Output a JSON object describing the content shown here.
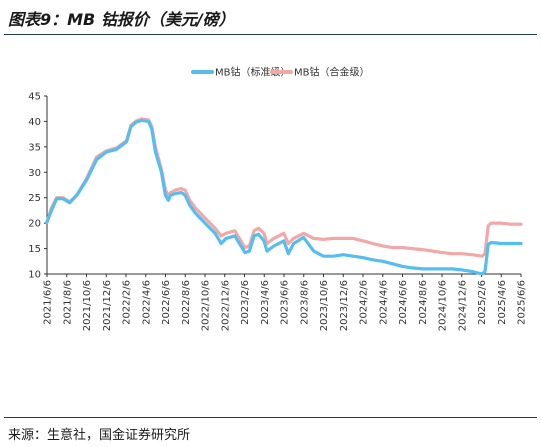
{
  "figure": {
    "title": "图表9：MB 钴报价（美元/磅）",
    "source": "来源：生意社，国金证券研究所"
  },
  "chart_data": {
    "type": "line",
    "title": "",
    "xlabel": "",
    "ylabel": "",
    "ylim": [
      10,
      45
    ],
    "yticks": [
      10,
      15,
      20,
      25,
      30,
      35,
      40,
      45
    ],
    "xlim": [
      "2021-06-06",
      "2025-06-06"
    ],
    "xtick_labels": [
      "2021/6/6",
      "2021/8/6",
      "2021/10/6",
      "2021/12/6",
      "2022/2/6",
      "2022/4/6",
      "2022/6/6",
      "2022/8/6",
      "2022/10/6",
      "2022/12/6",
      "2023/2/6",
      "2023/4/6",
      "2023/6/6",
      "2023/8/6",
      "2023/10/6",
      "2023/12/6",
      "2024/2/6",
      "2024/4/6",
      "2024/6/6",
      "2024/8/6",
      "2024/10/6",
      "2024/12/6",
      "2025/2/6",
      "2025/4/6",
      "2025/6/6"
    ],
    "legend_position": "top",
    "grid": false,
    "series": [
      {
        "name": "MB钴（标准级）",
        "color": "#55bdf0",
        "points": [
          [
            "2021-06-06",
            20.2
          ],
          [
            "2021-06-20",
            22.5
          ],
          [
            "2021-07-06",
            24.8
          ],
          [
            "2021-07-25",
            24.8
          ],
          [
            "2021-08-15",
            24.0
          ],
          [
            "2021-09-06",
            25.5
          ],
          [
            "2021-10-06",
            28.5
          ],
          [
            "2021-11-06",
            32.5
          ],
          [
            "2021-12-06",
            34.0
          ],
          [
            "2022-01-06",
            34.5
          ],
          [
            "2022-02-06",
            36.0
          ],
          [
            "2022-02-20",
            39.0
          ],
          [
            "2022-03-06",
            39.8
          ],
          [
            "2022-03-25",
            40.2
          ],
          [
            "2022-04-15",
            40.0
          ],
          [
            "2022-04-25",
            38.5
          ],
          [
            "2022-05-06",
            34.0
          ],
          [
            "2022-05-25",
            30.0
          ],
          [
            "2022-06-06",
            25.5
          ],
          [
            "2022-06-15",
            24.5
          ],
          [
            "2022-06-22",
            25.5
          ],
          [
            "2022-07-06",
            25.8
          ],
          [
            "2022-07-25",
            26.0
          ],
          [
            "2022-08-06",
            25.5
          ],
          [
            "2022-08-20",
            23.5
          ],
          [
            "2022-09-06",
            22.0
          ],
          [
            "2022-10-06",
            20.0
          ],
          [
            "2022-11-06",
            18.0
          ],
          [
            "2022-11-25",
            16.0
          ],
          [
            "2022-12-10",
            17.0
          ],
          [
            "2023-01-06",
            17.5
          ],
          [
            "2023-01-25",
            15.5
          ],
          [
            "2023-02-06",
            14.2
          ],
          [
            "2023-02-20",
            14.5
          ],
          [
            "2023-03-06",
            17.5
          ],
          [
            "2023-03-20",
            17.8
          ],
          [
            "2023-04-06",
            16.5
          ],
          [
            "2023-04-15",
            14.5
          ],
          [
            "2023-05-06",
            15.5
          ],
          [
            "2023-06-06",
            16.5
          ],
          [
            "2023-06-20",
            14.0
          ],
          [
            "2023-07-06",
            16.0
          ],
          [
            "2023-08-06",
            17.2
          ],
          [
            "2023-09-06",
            14.5
          ],
          [
            "2023-10-06",
            13.5
          ],
          [
            "2023-11-06",
            13.5
          ],
          [
            "2023-12-06",
            13.8
          ],
          [
            "2024-01-06",
            13.5
          ],
          [
            "2024-02-06",
            13.2
          ],
          [
            "2024-03-06",
            12.8
          ],
          [
            "2024-04-06",
            12.5
          ],
          [
            "2024-05-06",
            12.0
          ],
          [
            "2024-06-06",
            11.5
          ],
          [
            "2024-07-06",
            11.2
          ],
          [
            "2024-08-06",
            11.0
          ],
          [
            "2024-09-06",
            11.0
          ],
          [
            "2024-10-06",
            11.0
          ],
          [
            "2024-11-06",
            11.0
          ],
          [
            "2024-12-06",
            10.8
          ],
          [
            "2025-01-06",
            10.5
          ],
          [
            "2025-02-06",
            10.0
          ],
          [
            "2025-02-15",
            10.5
          ],
          [
            "2025-02-25",
            15.8
          ],
          [
            "2025-03-06",
            16.2
          ],
          [
            "2025-04-06",
            16.0
          ],
          [
            "2025-05-06",
            16.0
          ],
          [
            "2025-06-06",
            16.0
          ]
        ]
      },
      {
        "name": "MB钴（合金级）",
        "color": "#f0a8a8",
        "points": [
          [
            "2021-06-06",
            20.2
          ],
          [
            "2021-06-20",
            23.0
          ],
          [
            "2021-07-06",
            25.0
          ],
          [
            "2021-07-25",
            25.0
          ],
          [
            "2021-08-15",
            24.2
          ],
          [
            "2021-09-06",
            25.5
          ],
          [
            "2021-10-06",
            28.8
          ],
          [
            "2021-11-06",
            33.0
          ],
          [
            "2021-12-06",
            34.2
          ],
          [
            "2022-01-06",
            34.8
          ],
          [
            "2022-02-06",
            36.2
          ],
          [
            "2022-02-20",
            39.2
          ],
          [
            "2022-03-06",
            40.0
          ],
          [
            "2022-03-25",
            40.5
          ],
          [
            "2022-04-15",
            40.3
          ],
          [
            "2022-04-25",
            39.0
          ],
          [
            "2022-05-06",
            35.0
          ],
          [
            "2022-05-25",
            30.5
          ],
          [
            "2022-06-06",
            26.5
          ],
          [
            "2022-06-15",
            25.5
          ],
          [
            "2022-06-22",
            26.0
          ],
          [
            "2022-07-06",
            26.5
          ],
          [
            "2022-07-25",
            26.8
          ],
          [
            "2022-08-06",
            26.5
          ],
          [
            "2022-08-20",
            24.5
          ],
          [
            "2022-09-06",
            23.0
          ],
          [
            "2022-10-06",
            21.0
          ],
          [
            "2022-11-06",
            19.0
          ],
          [
            "2022-11-25",
            17.5
          ],
          [
            "2022-12-10",
            18.0
          ],
          [
            "2023-01-06",
            18.5
          ],
          [
            "2023-01-25",
            16.5
          ],
          [
            "2023-02-06",
            15.2
          ],
          [
            "2023-02-20",
            15.5
          ],
          [
            "2023-03-06",
            18.5
          ],
          [
            "2023-03-20",
            19.0
          ],
          [
            "2023-04-06",
            18.0
          ],
          [
            "2023-04-15",
            16.0
          ],
          [
            "2023-05-06",
            17.0
          ],
          [
            "2023-06-06",
            18.0
          ],
          [
            "2023-06-20",
            16.0
          ],
          [
            "2023-07-06",
            17.0
          ],
          [
            "2023-08-06",
            18.0
          ],
          [
            "2023-09-06",
            17.0
          ],
          [
            "2023-10-06",
            16.8
          ],
          [
            "2023-11-06",
            17.0
          ],
          [
            "2023-12-06",
            17.0
          ],
          [
            "2024-01-06",
            17.0
          ],
          [
            "2024-02-06",
            16.5
          ],
          [
            "2024-03-06",
            16.0
          ],
          [
            "2024-04-06",
            15.5
          ],
          [
            "2024-05-06",
            15.2
          ],
          [
            "2024-06-06",
            15.2
          ],
          [
            "2024-07-06",
            15.0
          ],
          [
            "2024-08-06",
            14.8
          ],
          [
            "2024-09-06",
            14.5
          ],
          [
            "2024-10-06",
            14.2
          ],
          [
            "2024-11-06",
            14.0
          ],
          [
            "2024-12-06",
            14.0
          ],
          [
            "2025-01-06",
            13.8
          ],
          [
            "2025-02-06",
            13.5
          ],
          [
            "2025-02-15",
            14.0
          ],
          [
            "2025-02-25",
            19.5
          ],
          [
            "2025-03-06",
            20.0
          ],
          [
            "2025-04-06",
            20.0
          ],
          [
            "2025-05-06",
            19.8
          ],
          [
            "2025-06-06",
            19.8
          ]
        ]
      }
    ]
  }
}
